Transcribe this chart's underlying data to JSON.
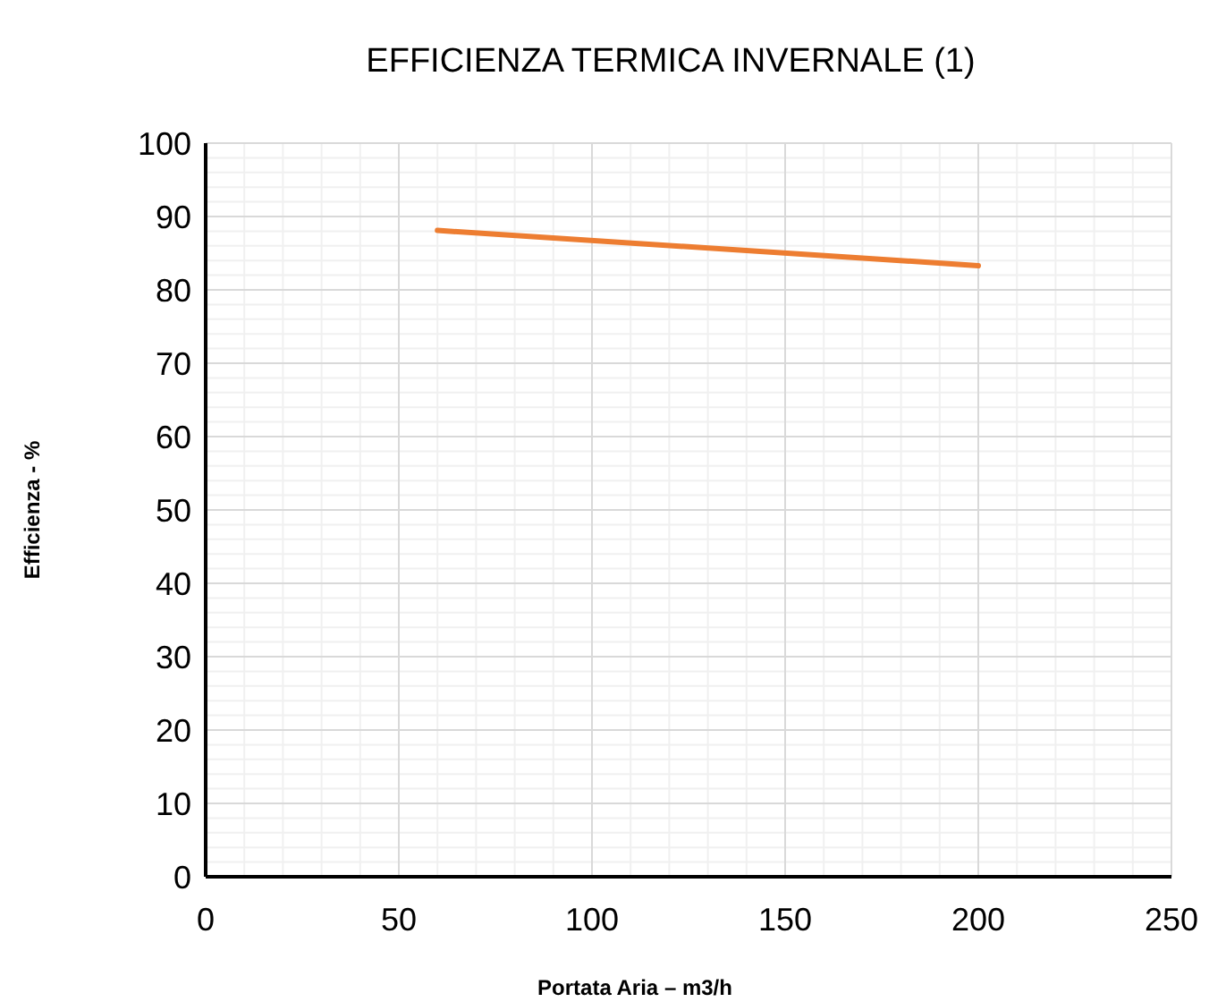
{
  "chart_data": {
    "type": "line",
    "title": "EFFICIENZA TERMICA INVERNALE (1)",
    "xlabel": "Portata Aria – m3/h",
    "ylabel": "Efficienza - %",
    "x": [
      60,
      200
    ],
    "series": [
      {
        "color": "#ed7d31",
        "values": [
          88.1,
          83.3
        ]
      }
    ],
    "xlim": [
      0,
      250
    ],
    "xticks": [
      0,
      50,
      100,
      150,
      200,
      250
    ],
    "ylim": [
      0,
      100
    ],
    "yticks": [
      0,
      10,
      20,
      30,
      40,
      50,
      60,
      70,
      80,
      90,
      100
    ],
    "grid": true,
    "marker": "none",
    "line_style": "solid"
  }
}
